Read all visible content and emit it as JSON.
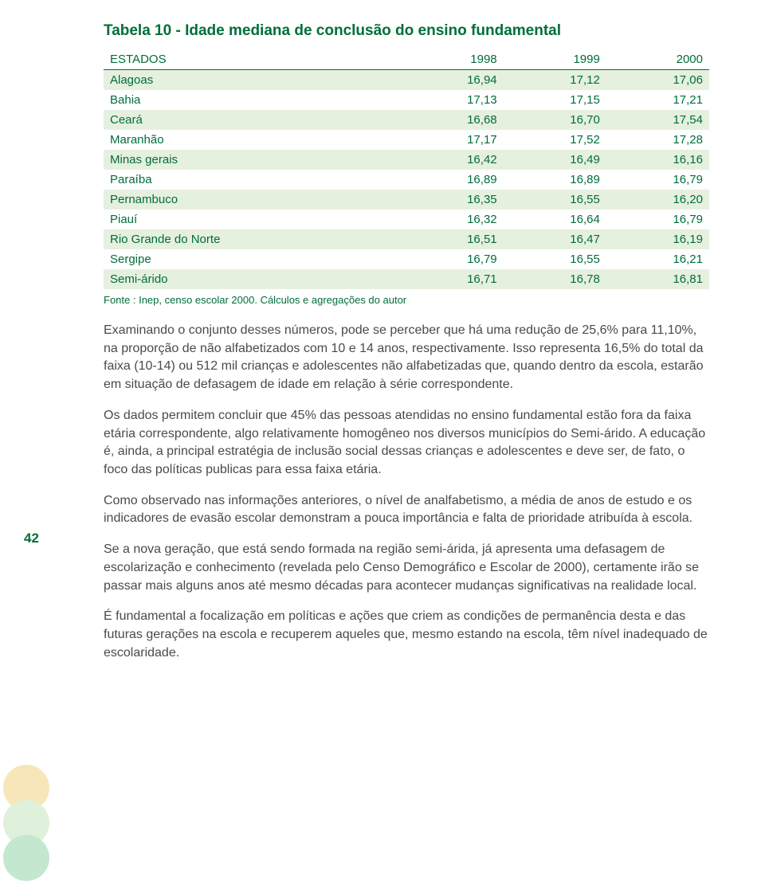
{
  "title": "Tabela 10 - Idade mediana de conclusão do ensino fundamental",
  "table": {
    "columns": [
      "ESTADOS",
      "1998",
      "1999",
      "2000"
    ],
    "rows": [
      [
        "Alagoas",
        "16,94",
        "17,12",
        "17,06"
      ],
      [
        "Bahia",
        "17,13",
        "17,15",
        "17,21"
      ],
      [
        "Ceará",
        "16,68",
        "16,70",
        "17,54"
      ],
      [
        "Maranhão",
        "17,17",
        "17,52",
        "17,28"
      ],
      [
        "Minas gerais",
        "16,42",
        "16,49",
        "16,16"
      ],
      [
        "Paraíba",
        "16,89",
        "16,89",
        "16,79"
      ],
      [
        "Pernambuco",
        "16,35",
        "16,55",
        "16,20"
      ],
      [
        "Piauí",
        "16,32",
        "16,64",
        "16,79"
      ],
      [
        "Rio Grande do Norte",
        "16,51",
        "16,47",
        "16,19"
      ],
      [
        "Sergipe",
        "16,79",
        "16,55",
        "16,21"
      ],
      [
        "Semi-árido",
        "16,71",
        "16,78",
        "16,81"
      ]
    ],
    "column_widths": [
      "40%",
      "20%",
      "20%",
      "20%"
    ],
    "text_color": "#006e3a",
    "alt_row_bg": "#e6f0df",
    "row_bg": "#ffffff",
    "font_size": 15
  },
  "source": "Fonte : Inep, censo escolar 2000. Cálculos e agregações do autor",
  "paragraphs": [
    "Examinando o conjunto desses números, pode se perceber que há uma redução de 25,6% para 11,10%, na proporção de não alfabetizados com 10 e 14 anos, respectivamente. Isso representa 16,5% do total da faixa (10-14) ou 512 mil crianças e adolescentes não alfabetizadas que, quando dentro da escola, estarão em situação de defasagem de idade em relação à série correspondente.",
    "Os dados permitem concluir que 45% das pessoas atendidas no ensino fundamental estão fora da faixa etária correspondente, algo relativamente homogêneo nos diversos municípios do Semi-árido. A educação é, ainda, a principal estratégia de inclusão social dessas crianças e adolescentes e deve ser, de fato, o foco das políticas publicas para essa faixa etária.",
    "Como observado nas informações anteriores, o nível de analfabetismo, a média de anos de estudo e os indicadores de evasão escolar demonstram a pouca importância e falta de prioridade atribuída à escola.",
    "Se a nova geração, que está sendo formada na região semi-árida, já apresenta uma defasagem de escolarização e conhecimento (revelada pelo Censo Demográfico e Escolar de 2000), certamente irão se passar mais alguns anos até mesmo décadas para acontecer mudanças significativas na realidade local.",
    "É fundamental a focalização em políticas e ações que criem as condições de permanência desta e das futuras gerações na escola e recuperem aqueles que, mesmo estando na escola, têm nível inadequado de escolaridade."
  ],
  "page_number": "42",
  "colors": {
    "accent": "#006e3a",
    "body_text": "#4a4a4a",
    "dot1": "#f7e6b8",
    "dot2": "#dff1da",
    "dot3": "#c4e7cf"
  }
}
